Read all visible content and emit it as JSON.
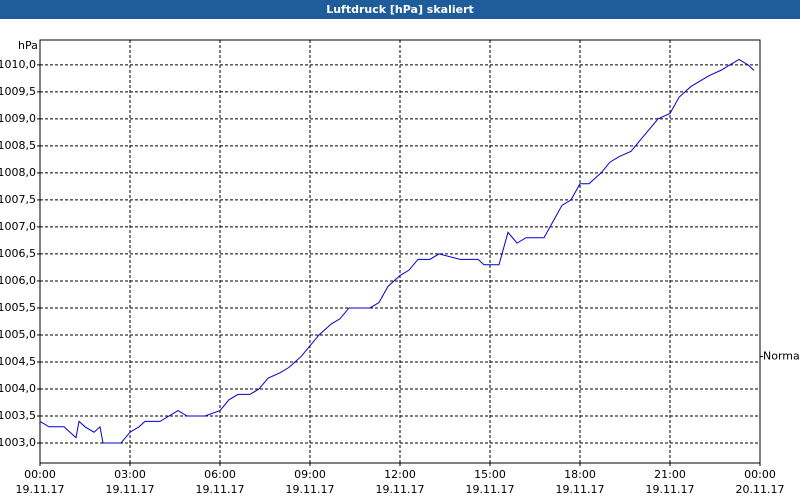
{
  "chart_data": {
    "type": "line",
    "title": "Luftdruck [hPa] skaliert",
    "y_label": "hPa",
    "annotation": {
      "text": "Normal",
      "value": 1004.6
    },
    "xlim": [
      0,
      24
    ],
    "ylim": [
      1002.63,
      1010.46
    ],
    "grid": true,
    "xticks": [
      {
        "value": 0,
        "label": [
          "00:00",
          "19.11.17"
        ]
      },
      {
        "value": 3,
        "label": [
          "03:00",
          "19.11.17"
        ]
      },
      {
        "value": 6,
        "label": [
          "06:00",
          "19.11.17"
        ]
      },
      {
        "value": 9,
        "label": [
          "09:00",
          "19.11.17"
        ]
      },
      {
        "value": 12,
        "label": [
          "12:00",
          "19.11.17"
        ]
      },
      {
        "value": 15,
        "label": [
          "15:00",
          "19.11.17"
        ]
      },
      {
        "value": 18,
        "label": [
          "18:00",
          "19.11.17"
        ]
      },
      {
        "value": 21,
        "label": [
          "21:00",
          "19.11.17"
        ]
      },
      {
        "value": 24,
        "label": [
          "00:00",
          "20.11.17"
        ]
      }
    ],
    "yticks": [
      {
        "value": 1003.0,
        "label": "1003,0"
      },
      {
        "value": 1003.5,
        "label": "1003,5"
      },
      {
        "value": 1004.0,
        "label": "1004,0"
      },
      {
        "value": 1004.5,
        "label": "1004,5"
      },
      {
        "value": 1005.0,
        "label": "1005,0"
      },
      {
        "value": 1005.5,
        "label": "1005,5"
      },
      {
        "value": 1006.0,
        "label": "1006,0"
      },
      {
        "value": 1006.5,
        "label": "1006,5"
      },
      {
        "value": 1007.0,
        "label": "1007,0"
      },
      {
        "value": 1007.5,
        "label": "1007,5"
      },
      {
        "value": 1008.0,
        "label": "1008,0"
      },
      {
        "value": 1008.5,
        "label": "1008,5"
      },
      {
        "value": 1009.0,
        "label": "1009,0"
      },
      {
        "value": 1009.5,
        "label": "1009,5"
      },
      {
        "value": 1010.0,
        "label": "1010,0"
      }
    ],
    "x": [
      0.0,
      0.3,
      0.8,
      1.0,
      1.2,
      1.3,
      1.5,
      1.8,
      2.0,
      2.1,
      2.7,
      3.0,
      3.3,
      3.5,
      4.0,
      4.3,
      4.6,
      4.9,
      5.2,
      5.5,
      6.0,
      6.3,
      6.6,
      7.0,
      7.3,
      7.6,
      8.0,
      8.3,
      8.7,
      9.0,
      9.3,
      9.7,
      10.0,
      10.3,
      11.0,
      11.3,
      11.6,
      12.0,
      12.3,
      12.6,
      13.0,
      13.3,
      14.0,
      14.6,
      14.8,
      15.3,
      15.6,
      15.9,
      16.2,
      16.8,
      17.2,
      17.4,
      17.7,
      18.0,
      18.3,
      18.7,
      19.0,
      19.3,
      19.7,
      20.0,
      20.3,
      20.6,
      21.0,
      21.3,
      21.7,
      22.0,
      22.3,
      22.7,
      23.0,
      23.3,
      23.6,
      23.8
    ],
    "series": [
      {
        "name": "Luftdruck",
        "color": "#0000cc",
        "values": [
          1003.4,
          1003.3,
          1003.3,
          1003.2,
          1003.1,
          1003.4,
          1003.3,
          1003.2,
          1003.3,
          1003.0,
          1003.0,
          1003.2,
          1003.3,
          1003.4,
          1003.4,
          1003.5,
          1003.6,
          1003.5,
          1003.5,
          1003.5,
          1003.6,
          1003.8,
          1003.9,
          1003.9,
          1004.0,
          1004.2,
          1004.3,
          1004.4,
          1004.6,
          1004.8,
          1005.0,
          1005.2,
          1005.3,
          1005.5,
          1005.5,
          1005.6,
          1005.9,
          1006.1,
          1006.2,
          1006.4,
          1006.4,
          1006.5,
          1006.4,
          1006.4,
          1006.3,
          1006.3,
          1006.9,
          1006.7,
          1006.8,
          1006.8,
          1007.2,
          1007.4,
          1007.5,
          1007.8,
          1007.8,
          1008.0,
          1008.2,
          1008.3,
          1008.4,
          1008.6,
          1008.8,
          1009.0,
          1009.1,
          1009.4,
          1009.6,
          1009.7,
          1009.8,
          1009.9,
          1010.0,
          1010.1,
          1010.0,
          1009.9
        ]
      }
    ]
  }
}
